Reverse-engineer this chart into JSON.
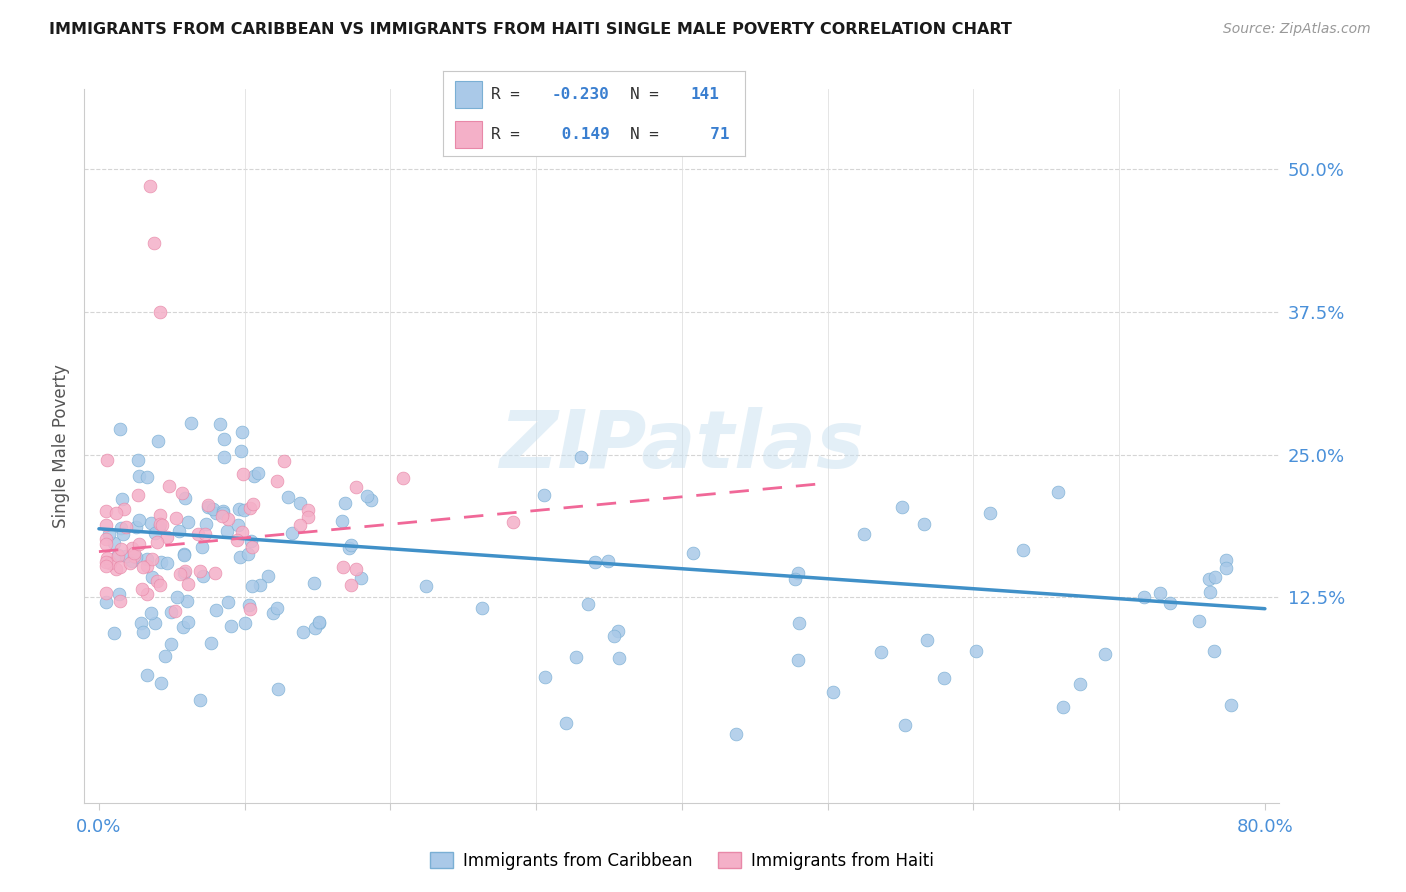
{
  "title": "IMMIGRANTS FROM CARIBBEAN VS IMMIGRANTS FROM HAITI SINGLE MALE POVERTY CORRELATION CHART",
  "source": "Source: ZipAtlas.com",
  "ylabel": "Single Male Poverty",
  "right_ytick_vals": [
    0.5,
    0.375,
    0.25,
    0.125
  ],
  "right_ytick_labels": [
    "50.0%",
    "37.5%",
    "25.0%",
    "12.5%"
  ],
  "xlim": [
    0.0,
    0.8
  ],
  "ylim": [
    0.0,
    0.55
  ],
  "watermark": "ZIPatlas",
  "caribbean_color_face": "#aac9e8",
  "caribbean_color_edge": "#7aafd4",
  "haiti_color_face": "#f4b0c8",
  "haiti_color_edge": "#e888a8",
  "caribbean_line_color": "#4090c8",
  "haiti_line_color": "#f06898",
  "background_color": "#ffffff",
  "grid_color": "#d0d0d0",
  "carib_R": "-0.230",
  "carib_N": "141",
  "haiti_R": "0.149",
  "haiti_N": "71",
  "carib_trend": [
    0.0,
    0.8,
    0.185,
    0.115
  ],
  "haiti_trend": [
    0.0,
    0.5,
    0.165,
    0.225
  ]
}
